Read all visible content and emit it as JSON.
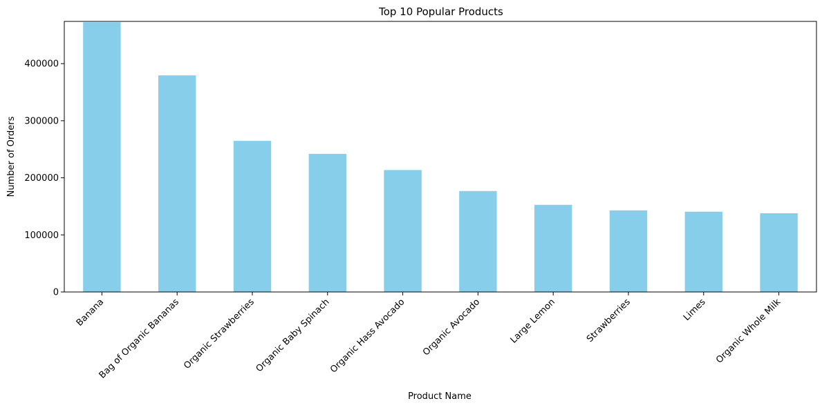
{
  "chart_data": {
    "type": "bar",
    "title": "Top 10 Popular Products",
    "xlabel": "Product Name",
    "ylabel": "Number of Orders",
    "categories": [
      "Banana",
      "Bag of Organic Bananas",
      "Organic Strawberries",
      "Organic Baby Spinach",
      "Organic Hass Avocado",
      "Organic Avocado",
      "Large Lemon",
      "Strawberries",
      "Limes",
      "Organic Whole Milk"
    ],
    "values": [
      472565,
      379450,
      264683,
      241921,
      213584,
      176815,
      152657,
      142951,
      140627,
      137905
    ],
    "ylim": [
      0,
      474000
    ],
    "yticks": [
      0,
      100000,
      200000,
      300000,
      400000
    ],
    "ytick_labels": [
      "0",
      "100000",
      "200000",
      "300000",
      "400000"
    ],
    "bar_color": "#87ceeb",
    "grid": false,
    "legend": "none"
  }
}
